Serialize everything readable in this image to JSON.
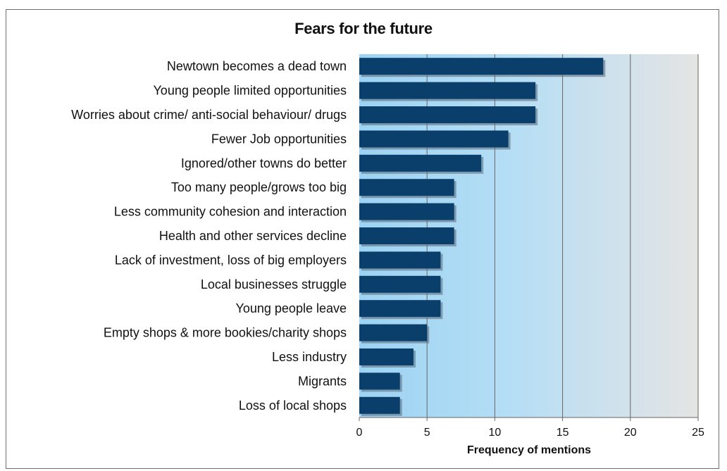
{
  "chart_data": {
    "type": "bar",
    "orientation": "horizontal",
    "title": "Fears for the future",
    "xlabel": "Frequency of mentions",
    "ylabel": "",
    "xlim": [
      0,
      25
    ],
    "xticks": [
      0,
      5,
      10,
      15,
      20,
      25
    ],
    "grid": "vertical",
    "categories": [
      "Newtown becomes a dead town",
      "Young people limited opportunities",
      "Worries about crime/ anti-social behaviour/ drugs",
      "Fewer Job opportunities",
      "Ignored/other towns do better",
      "Too many people/grows too big",
      "Less community cohesion and interaction",
      "Health and other services decline",
      "Lack of investment, loss of big employers",
      "Local businesses struggle",
      "Young people leave",
      "Empty shops & more bookies/charity shops",
      "Less industry",
      "Migrants",
      "Loss of local shops"
    ],
    "values": [
      18,
      13,
      13,
      11,
      9,
      7,
      7,
      7,
      6,
      6,
      6,
      5,
      4,
      3,
      3
    ],
    "colors": {
      "bar": "#0b3f6b",
      "bar_shadow": "#5f6f80",
      "plot_bg_left": "#9dd3f3",
      "plot_bg_right": "#e4e4e4",
      "grid": "#666666"
    }
  }
}
